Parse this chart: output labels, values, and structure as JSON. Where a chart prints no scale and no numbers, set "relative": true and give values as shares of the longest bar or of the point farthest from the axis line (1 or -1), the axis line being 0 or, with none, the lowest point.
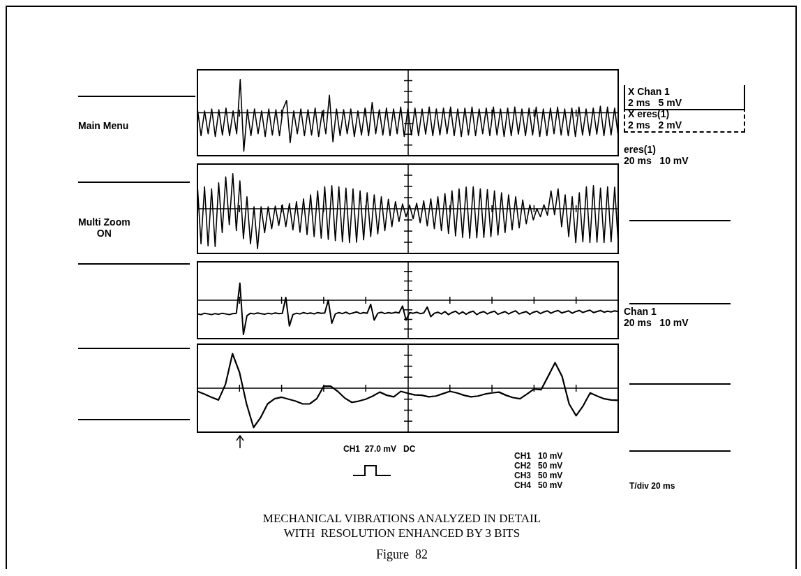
{
  "chart_data": [
    {
      "type": "line",
      "relative": true,
      "annotations": [
        "Main Menu",
        "X Chan 1\n2 ms   5 mV",
        "X eres(1)\n2 ms   2 mV"
      ],
      "categories": [
        null,
        null,
        null,
        null,
        null,
        null,
        null,
        null,
        null,
        null,
        null,
        null,
        null,
        null,
        null,
        null,
        null,
        null,
        null,
        null,
        null,
        null,
        null,
        null,
        null,
        null,
        null,
        null,
        null,
        null,
        null,
        null,
        null,
        null,
        null,
        null,
        null,
        null,
        null,
        null,
        null,
        null,
        null,
        null,
        null,
        null,
        null,
        null,
        null,
        null,
        null,
        null,
        null,
        null,
        null,
        null,
        null,
        null,
        null,
        null,
        null,
        null,
        null,
        null,
        null,
        null,
        null,
        null,
        null,
        null,
        null,
        null,
        null,
        null,
        null,
        null,
        null,
        null,
        null,
        null,
        null,
        null,
        null,
        null,
        null,
        null,
        null,
        null,
        null,
        null,
        null,
        null,
        null,
        null,
        null,
        null,
        null,
        null,
        null,
        null,
        null,
        null,
        null,
        null,
        null,
        null,
        null,
        null,
        null,
        null,
        null,
        null,
        null,
        null,
        null,
        null,
        null,
        null,
        null
      ],
      "series": [
        {
          "color": "#000000",
          "values": [
            0.1,
            -0.6,
            0.05,
            -0.55,
            0.1,
            -0.62,
            0.08,
            -0.58,
            0.12,
            -0.6,
            0.05,
            -0.55,
            0.87,
            -1,
            0.08,
            -0.6,
            0.1,
            -0.55,
            0.05,
            -0.62,
            0.1,
            -0.58,
            0.08,
            -0.6,
            0.1,
            0.32,
            -0.78,
            0.05,
            -0.55,
            0.1,
            -0.6,
            0.08,
            -0.58,
            0.12,
            -0.62,
            0.05,
            -0.55,
            0.46,
            -0.76,
            0.1,
            -0.6,
            0.08,
            -0.55,
            0.1,
            -0.62,
            0.05,
            -0.58,
            0.12,
            -0.6,
            0.27,
            -0.55,
            0.08,
            -0.58,
            0.12,
            -0.6,
            0.1,
            -0.55,
            0.15,
            -0.62,
            0.1,
            -0.58,
            0.12,
            -0.6,
            0.1,
            -0.56,
            0.15,
            -0.6,
            0.1,
            -0.58,
            0.12,
            -0.55,
            0.15,
            -0.6,
            0.1,
            -0.62,
            0.12,
            -0.58,
            0.15,
            -0.6,
            0.1,
            -0.55,
            0.12,
            -0.6,
            0.15,
            -0.58,
            0.1,
            -0.62,
            0.12,
            -0.6,
            0.15,
            -0.56,
            0.1,
            -0.6,
            0.12,
            -0.58,
            0.15,
            -0.62,
            0.1,
            -0.6,
            0.12,
            -0.55,
            0.15,
            -0.58,
            0.1,
            -0.6,
            0.12,
            -0.62,
            0.15,
            -0.58,
            0.1,
            -0.6,
            0.12,
            -0.56,
            0.17,
            -0.6,
            0.15,
            -0.58,
            0.12,
            -0.6
          ]
        }
      ]
    },
    {
      "type": "line",
      "relative": true,
      "annotations": [
        "eres(1)\n20 ms   10 mV",
        "Multi Zoom\nON"
      ],
      "categories": [
        null,
        null,
        null,
        null,
        null,
        null,
        null,
        null,
        null,
        null,
        null,
        null,
        null,
        null,
        null,
        null,
        null,
        null,
        null,
        null,
        null,
        null,
        null,
        null,
        null,
        null,
        null,
        null,
        null,
        null,
        null,
        null,
        null,
        null,
        null,
        null,
        null,
        null,
        null,
        null,
        null,
        null,
        null,
        null,
        null,
        null,
        null,
        null,
        null,
        null,
        null,
        null,
        null,
        null,
        null,
        null,
        null,
        null,
        null,
        null,
        null,
        null,
        null,
        null,
        null,
        null,
        null,
        null,
        null,
        null,
        null,
        null,
        null,
        null,
        null,
        null,
        null,
        null,
        null,
        null,
        null,
        null,
        null,
        null,
        null,
        null,
        null,
        null,
        null,
        null,
        null,
        null,
        null,
        null,
        null,
        null,
        null,
        null,
        null,
        null,
        null,
        null,
        null,
        null,
        null,
        null,
        null,
        null,
        null,
        null,
        null,
        null,
        null,
        null,
        null,
        null,
        null,
        null,
        null,
        null
      ],
      "series": [
        {
          "color": "#000000",
          "values": [
            0.58,
            -0.88,
            0.55,
            -0.93,
            0.5,
            -0.95,
            0.65,
            -0.6,
            0.8,
            -0.4,
            0.88,
            -0.55,
            0.7,
            -0.75,
            0.3,
            -0.88,
            0.05,
            -1,
            0.05,
            -0.6,
            0.05,
            -0.5,
            0.07,
            -0.42,
            0.1,
            -0.45,
            0.13,
            -0.53,
            0.18,
            -0.59,
            0.25,
            -0.65,
            0.35,
            -0.7,
            0.45,
            -0.74,
            0.55,
            -0.77,
            0.58,
            -0.8,
            0.55,
            -0.83,
            0.52,
            -0.85,
            0.5,
            -0.84,
            0.45,
            -0.78,
            0.4,
            -0.7,
            0.35,
            -0.63,
            0.3,
            -0.55,
            0.24,
            -0.45,
            0.18,
            -0.32,
            0.12,
            -0.2,
            0.09,
            -0.25,
            0.14,
            -0.35,
            0.2,
            -0.43,
            0.25,
            -0.5,
            0.3,
            -0.55,
            0.38,
            -0.62,
            0.45,
            -0.68,
            0.5,
            -0.72,
            0.54,
            -0.74,
            0.55,
            -0.73,
            0.5,
            -0.72,
            0.48,
            -0.7,
            0.45,
            -0.66,
            0.4,
            -0.6,
            0.35,
            -0.53,
            0.3,
            -0.48,
            0.22,
            -0.38,
            0.1,
            -0.28,
            0,
            -0.2,
            0.1,
            -0.16,
            0.45,
            -0.15,
            0.5,
            -0.45,
            0.35,
            -0.7,
            0.3,
            -0.85,
            0.4,
            -0.83,
            0.55,
            -0.85,
            0.58,
            -0.84,
            0.52,
            -0.85,
            0.55,
            -0.83,
            0.54,
            -0.85
          ]
        }
      ]
    },
    {
      "type": "line",
      "relative": true,
      "annotations": [
        "Chan 1\n20 ms   10 mV"
      ],
      "categories": [
        null,
        null,
        null,
        null,
        null,
        null,
        null,
        null,
        null,
        null,
        null,
        null,
        null,
        null,
        null,
        null,
        null,
        null,
        null,
        null,
        null,
        null,
        null,
        null,
        null,
        null,
        null,
        null,
        null,
        null,
        null,
        null,
        null,
        null,
        null,
        null,
        null,
        null,
        null,
        null,
        null,
        null,
        null,
        null,
        null,
        null,
        null,
        null,
        null,
        null,
        null,
        null,
        null,
        null,
        null,
        null,
        null,
        null,
        null,
        null,
        null,
        null,
        null,
        null,
        null,
        null,
        null,
        null,
        null,
        null,
        null,
        null,
        null,
        null,
        null,
        null,
        null,
        null,
        null,
        null,
        null,
        null,
        null,
        null,
        null,
        null,
        null,
        null,
        null,
        null,
        null,
        null,
        null,
        null,
        null,
        null,
        null,
        null,
        null,
        null,
        null,
        null,
        null,
        null,
        null,
        null,
        null,
        null,
        null,
        null,
        null,
        null,
        null,
        null,
        null,
        null,
        null,
        null,
        null,
        null
      ],
      "series": [
        {
          "color": "#000000",
          "values": [
            -0.4,
            -0.42,
            -0.38,
            -0.4,
            -0.42,
            -0.39,
            -0.41,
            -0.38,
            -0.4,
            -0.42,
            -0.39,
            -0.38,
            0.5,
            -1,
            -0.45,
            -0.38,
            -0.4,
            -0.37,
            -0.39,
            -0.41,
            -0.38,
            -0.4,
            -0.37,
            -0.39,
            -0.38,
            0.08,
            -0.75,
            -0.42,
            -0.38,
            -0.4,
            -0.36,
            -0.39,
            -0.37,
            -0.4,
            -0.36,
            -0.38,
            -0.37,
            0,
            -0.67,
            -0.4,
            -0.36,
            -0.39,
            -0.35,
            -0.4,
            -0.37,
            -0.34,
            -0.39,
            -0.36,
            -0.38,
            -0.12,
            -0.58,
            -0.38,
            -0.35,
            -0.39,
            -0.36,
            -0.38,
            -0.35,
            -0.37,
            -0.17,
            -0.58,
            -0.36,
            -0.38,
            -0.35,
            -0.39,
            -0.37,
            -0.2,
            -0.48,
            -0.38,
            -0.35,
            -0.4,
            -0.33,
            -0.42,
            -0.36,
            -0.32,
            -0.4,
            -0.34,
            -0.41,
            -0.35,
            -0.32,
            -0.42,
            -0.36,
            -0.33,
            -0.4,
            -0.35,
            -0.32,
            -0.41,
            -0.37,
            -0.33,
            -0.4,
            -0.35,
            -0.31,
            -0.4,
            -0.36,
            -0.33,
            -0.41,
            -0.35,
            -0.32,
            -0.39,
            -0.34,
            -0.31,
            -0.38,
            -0.33,
            -0.3,
            -0.37,
            -0.34,
            -0.31,
            -0.38,
            -0.33,
            -0.3,
            -0.36,
            -0.32,
            -0.29,
            -0.36,
            -0.33,
            -0.3,
            -0.35,
            -0.32,
            -0.34,
            -0.31,
            -0.33
          ]
        }
      ]
    },
    {
      "type": "line",
      "relative": true,
      "annotations": [
        "CH1  27.0 mV   DC",
        "CH1   10 mV",
        "CH2   50 mV",
        "CH3   50 mV",
        "CH4   50 mV",
        "T/div 20 ms",
        "MECHANICAL VIBRATIONS ANALYZED IN DETAIL\nWITH  RESOLUTION ENHANCED BY 3 BITS",
        "Figure  82"
      ],
      "categories": [
        null,
        null,
        null,
        null,
        null,
        null,
        null,
        null,
        null,
        null,
        null,
        null,
        null,
        null,
        null,
        null,
        null,
        null,
        null,
        null,
        null,
        null,
        null,
        null,
        null,
        null,
        null,
        null,
        null,
        null,
        null,
        null,
        null,
        null,
        null,
        null,
        null,
        null,
        null,
        null,
        null,
        null,
        null,
        null,
        null,
        null,
        null,
        null,
        null,
        null,
        null,
        null,
        null,
        null,
        null,
        null,
        null,
        null,
        null,
        null,
        null
      ],
      "series": [
        {
          "color": "#000000",
          "values": [
            -0.08,
            -0.15,
            -0.23,
            -0.3,
            0.1,
            0.88,
            0.4,
            -0.4,
            -1,
            -0.75,
            -0.4,
            -0.27,
            -0.23,
            -0.28,
            -0.33,
            -0.4,
            -0.4,
            -0.27,
            0.05,
            0.05,
            -0.08,
            -0.25,
            -0.36,
            -0.33,
            -0.28,
            -0.2,
            -0.1,
            -0.18,
            -0.22,
            -0.08,
            -0.13,
            -0.17,
            -0.18,
            -0.22,
            -0.2,
            -0.14,
            -0.08,
            -0.12,
            -0.18,
            -0.22,
            -0.2,
            -0.15,
            -0.12,
            -0.1,
            -0.18,
            -0.24,
            -0.27,
            -0.15,
            -0.02,
            -0.04,
            0.3,
            0.65,
            0.3,
            -0.4,
            -0.7,
            -0.45,
            -0.12,
            -0.2,
            -0.27,
            -0.3,
            -0.31
          ]
        }
      ]
    }
  ]
}
